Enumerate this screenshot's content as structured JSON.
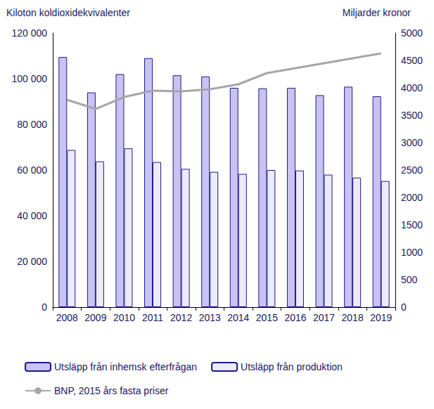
{
  "chart_data": {
    "type": "bar",
    "y_label": "Kiloton koldioxidekvivalenter",
    "y2_label": "Miljarder kronor",
    "categories": [
      "2008",
      "2009",
      "2010",
      "2011",
      "2012",
      "2013",
      "2014",
      "2015",
      "2016",
      "2017",
      "2018",
      "2019"
    ],
    "series": [
      {
        "name": "Utsläpp från inhemsk efterfrågan",
        "type": "bar",
        "color": "#c9c3f2",
        "values": [
          109500,
          94000,
          102000,
          109000,
          101500,
          101000,
          96000,
          95800,
          96000,
          92800,
          96500,
          92300
        ]
      },
      {
        "name": "Utsläpp från produktion",
        "type": "bar",
        "color": "#eceafb",
        "values": [
          68800,
          63800,
          69500,
          63500,
          60500,
          59200,
          58300,
          60000,
          59800,
          58000,
          56700,
          55200
        ]
      },
      {
        "name": "BNP, 2015 års fasta priser",
        "type": "line",
        "color": "#a6a6a6",
        "axis": "y2",
        "marker": "none",
        "values": [
          3782,
          3615,
          3833,
          3949,
          3936,
          3974,
          4064,
          4269,
          4359,
          4449,
          4538,
          4628
        ]
      }
    ],
    "ylim": [
      0,
      120000
    ],
    "yticks": [
      0,
      {
        "value": 20000,
        "label": "20 000"
      },
      {
        "value": 40000,
        "label": "40 000"
      },
      {
        "value": 60000,
        "label": "60 000"
      },
      {
        "value": 80000,
        "label": "80 000"
      },
      {
        "value": 100000,
        "label": "100 000"
      },
      {
        "value": 120000,
        "label": "120 000"
      }
    ],
    "y2lim": [
      0,
      5000
    ],
    "y2ticks": [
      0,
      500,
      1000,
      1500,
      2000,
      2500,
      3000,
      3500,
      4000,
      4500,
      5000
    ],
    "grid": false,
    "legend": "bottom-left"
  }
}
